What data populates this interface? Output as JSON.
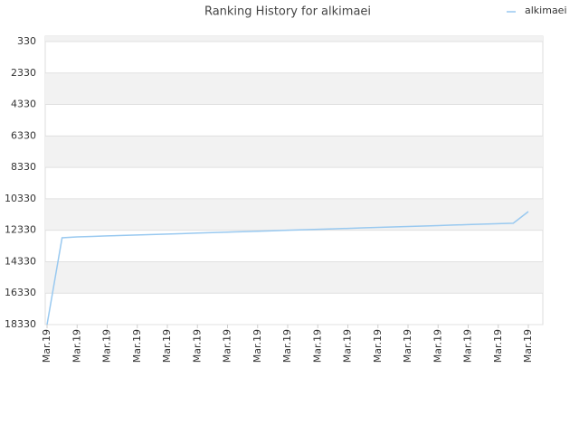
{
  "chart_data": {
    "type": "line",
    "title": "Ranking History for alkimaei",
    "categories": [
      "Mar.19",
      null,
      "Mar.19",
      null,
      "Mar.19",
      null,
      "Mar.19",
      null,
      "Mar.19",
      null,
      "Mar.19",
      null,
      "Mar.19",
      null,
      "Mar.19",
      null,
      "Mar.19",
      null,
      "Mar.19",
      null,
      "Mar.19",
      null,
      "Mar.19",
      null,
      "Mar.19",
      null,
      "Mar.19",
      null,
      "Mar.19",
      null,
      "Mar.19",
      null,
      "Mar.19"
    ],
    "series": [
      {
        "name": "alkimaei",
        "color": "#99c9f0",
        "values": [
          18330,
          12810,
          12750,
          12720,
          12690,
          12660,
          12630,
          12600,
          12570,
          12540,
          12510,
          12480,
          12450,
          12420,
          12390,
          12360,
          12330,
          12300,
          12270,
          12240,
          12210,
          12180,
          12150,
          12120,
          12090,
          12060,
          12030,
          12000,
          11970,
          11940,
          11910,
          11880,
          11140
        ]
      }
    ],
    "ylim": [
      18330,
      -15
    ],
    "yticks": [
      330,
      2330,
      4330,
      6330,
      8330,
      10330,
      12330,
      14330,
      16330,
      18330
    ],
    "grid": true,
    "legend": "top-right"
  }
}
